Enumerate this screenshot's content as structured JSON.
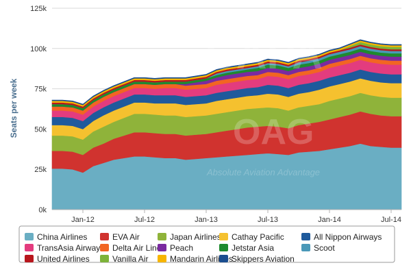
{
  "chart_data": {
    "type": "area",
    "stacked": true,
    "ylabel": "Seats per week",
    "y_ticks": [
      "0k",
      "25k",
      "50k",
      "75k",
      "100k",
      "125k"
    ],
    "y_tick_values": [
      0,
      25000,
      50000,
      75000,
      100000,
      125000
    ],
    "ylim": [
      0,
      125000
    ],
    "x_ticks": [
      "Jan-12",
      "Jul-12",
      "Jan-13",
      "Jul-13",
      "Jan-14",
      "Jul-14"
    ],
    "x_tick_positions": [
      3,
      9,
      15,
      21,
      27,
      33
    ],
    "x": [
      0,
      1,
      2,
      3,
      4,
      5,
      6,
      7,
      8,
      9,
      10,
      11,
      12,
      13,
      14,
      15,
      16,
      17,
      18,
      19,
      20,
      21,
      22,
      23,
      24,
      25,
      26,
      27,
      28,
      29,
      30,
      31,
      32,
      33,
      34
    ],
    "grid": true,
    "legend_position": "bottom",
    "series": [
      {
        "name": "China Airlines",
        "color": "#6aaec3",
        "values": [
          25500,
          25500,
          25000,
          23000,
          27000,
          29000,
          31000,
          32000,
          33000,
          33000,
          32500,
          32000,
          32000,
          31000,
          31500,
          32000,
          32500,
          33000,
          33500,
          34000,
          34500,
          35000,
          34500,
          34000,
          35500,
          36000,
          36500,
          37500,
          38500,
          39500,
          41000,
          39500,
          39000,
          38500,
          38500
        ]
      },
      {
        "name": "EVA Air",
        "color": "#d0332f",
        "values": [
          11000,
          11000,
          11000,
          11000,
          11500,
          12000,
          13000,
          14000,
          15000,
          15000,
          15000,
          15000,
          15000,
          15000,
          15000,
          15000,
          15500,
          16000,
          16500,
          17000,
          17000,
          17000,
          17000,
          16500,
          17000,
          17500,
          18000,
          18500,
          19000,
          19500,
          20000,
          20000,
          19500,
          19500,
          19500
        ]
      },
      {
        "name": "Japan Airlines",
        "color": "#8fb33a",
        "values": [
          9500,
          9500,
          9500,
          9500,
          10000,
          10500,
          10500,
          11000,
          11500,
          11500,
          11500,
          11500,
          11500,
          11500,
          11500,
          11500,
          11500,
          11500,
          11500,
          11500,
          11500,
          11500,
          11500,
          11000,
          11000,
          11000,
          11000,
          11500,
          11500,
          11500,
          11500,
          11500,
          11500,
          11500,
          11500
        ]
      },
      {
        "name": "Cathay Pacific",
        "color": "#f5c12f",
        "values": [
          6500,
          6500,
          6500,
          6500,
          6500,
          7000,
          7000,
          7000,
          7000,
          7000,
          7000,
          7500,
          7500,
          7500,
          7500,
          7500,
          8000,
          8000,
          8000,
          8000,
          8000,
          8500,
          8500,
          8500,
          8500,
          8500,
          9000,
          9000,
          9000,
          9000,
          9000,
          9000,
          9000,
          9000,
          9000
        ]
      },
      {
        "name": "All Nippon Airways",
        "color": "#1f5a9c",
        "values": [
          5000,
          5000,
          5000,
          5000,
          5000,
          5000,
          5000,
          5000,
          5000,
          5000,
          5000,
          5000,
          5000,
          5000,
          5000,
          5000,
          5000,
          5000,
          5000,
          5000,
          5000,
          5500,
          5500,
          5500,
          5500,
          5500,
          5500,
          5500,
          5500,
          5500,
          5500,
          5500,
          5500,
          5500,
          5500
        ]
      },
      {
        "name": "TransAsia Airways",
        "color": "#e33c7e",
        "values": [
          4000,
          4000,
          4000,
          4000,
          4000,
          4000,
          4000,
          4000,
          4000,
          4000,
          4000,
          4500,
          4500,
          4500,
          4500,
          4500,
          5000,
          5000,
          5000,
          5000,
          5000,
          5500,
          5500,
          5500,
          5500,
          5500,
          5500,
          6000,
          6000,
          6000,
          6000,
          6000,
          6000,
          6000,
          6000
        ]
      },
      {
        "name": "Delta Air Lines",
        "color": "#f26522",
        "values": [
          2500,
          2500,
          2500,
          2500,
          2500,
          2500,
          2500,
          2500,
          2500,
          2500,
          2500,
          2500,
          2500,
          2500,
          2500,
          2500,
          2500,
          2500,
          2500,
          2500,
          2500,
          2500,
          2500,
          2500,
          2500,
          2500,
          2500,
          2500,
          2500,
          2500,
          2500,
          2500,
          2500,
          2500,
          2500
        ]
      },
      {
        "name": "Peach",
        "color": "#7a2aa0",
        "values": [
          0,
          0,
          0,
          0,
          0,
          0,
          0,
          0,
          0,
          0,
          0,
          0,
          0,
          1000,
          1500,
          2000,
          2000,
          2500,
          2500,
          2500,
          2500,
          2500,
          2500,
          2500,
          2500,
          2500,
          2500,
          2500,
          2500,
          2500,
          2500,
          2500,
          2500,
          2500,
          2500
        ]
      },
      {
        "name": "Jetstar Asia",
        "color": "#1e8a2e",
        "values": [
          1500,
          1500,
          1500,
          1500,
          1500,
          1500,
          1500,
          1500,
          1500,
          1500,
          1500,
          1500,
          1500,
          1500,
          1500,
          1500,
          1500,
          1500,
          1500,
          1500,
          2000,
          2000,
          2000,
          2000,
          2000,
          2000,
          2000,
          2000,
          2000,
          2000,
          2000,
          2000,
          2000,
          2000,
          2000
        ]
      },
      {
        "name": "Scoot",
        "color": "#4a98b8",
        "values": [
          0,
          0,
          0,
          0,
          0,
          0,
          0,
          0,
          0,
          0,
          0,
          0,
          0,
          0,
          0,
          0,
          1000,
          1000,
          1000,
          1000,
          1000,
          1000,
          1000,
          1000,
          1500,
          1500,
          1500,
          1500,
          1500,
          1500,
          1500,
          1500,
          1500,
          1500,
          1500
        ]
      },
      {
        "name": "United Airlines",
        "color": "#b8161c",
        "values": [
          1000,
          1000,
          1000,
          1000,
          1000,
          1000,
          1000,
          1000,
          1000,
          1000,
          1000,
          1000,
          1000,
          1000,
          1000,
          1000,
          1000,
          1000,
          1000,
          1000,
          1000,
          1000,
          1000,
          1000,
          1000,
          1000,
          1000,
          1000,
          1000,
          1000,
          1000,
          1000,
          1000,
          1000,
          1000
        ]
      },
      {
        "name": "Vanilla Air",
        "color": "#7db339",
        "values": [
          0,
          0,
          0,
          0,
          0,
          0,
          0,
          0,
          0,
          0,
          0,
          0,
          0,
          0,
          0,
          0,
          0,
          0,
          0,
          0,
          0,
          0,
          0,
          0,
          0,
          0,
          0,
          0,
          0,
          1000,
          1500,
          1500,
          1500,
          1500,
          1500
        ]
      },
      {
        "name": "Mandarin Airlines",
        "color": "#f7b500",
        "values": [
          1000,
          1000,
          1000,
          1000,
          1000,
          1000,
          1000,
          1000,
          1000,
          1000,
          1000,
          1000,
          1000,
          1000,
          1000,
          1000,
          1000,
          1000,
          1000,
          1000,
          1000,
          1000,
          1000,
          1000,
          1000,
          1000,
          1000,
          1000,
          1000,
          1000,
          1000,
          1000,
          1000,
          1000,
          1000
        ]
      },
      {
        "name": "Skippers Aviation",
        "color": "#1a4d8f",
        "values": [
          500,
          500,
          500,
          500,
          500,
          500,
          500,
          500,
          500,
          500,
          500,
          500,
          500,
          500,
          500,
          500,
          500,
          500,
          500,
          500,
          500,
          500,
          500,
          500,
          500,
          500,
          500,
          500,
          500,
          500,
          500,
          500,
          500,
          500,
          500
        ]
      }
    ]
  },
  "legend_rows": [
    [
      "China Airlines",
      "EVA Air",
      "Japan Airlines",
      "Cathay Pacific",
      "All Nippon Airways"
    ],
    [
      "TransAsia Airways",
      "Delta Air Lines",
      "Peach",
      "Jetstar Asia",
      "Scoot"
    ],
    [
      "United Airlines",
      "Vanilla Air",
      "Mandarin Airlines",
      "Skippers Aviation"
    ]
  ],
  "watermark": {
    "mark": "OAG",
    "tagline": "Absolute Aviation Advantage",
    "corner_mark": "CAPA"
  }
}
